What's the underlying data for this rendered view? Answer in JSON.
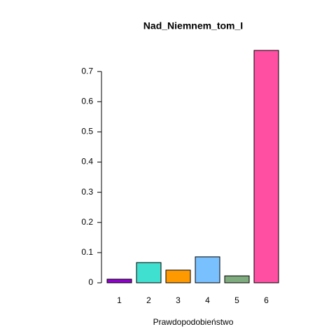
{
  "chart_data": {
    "type": "bar",
    "title": "Nad_Niemnem_tom_I",
    "x_label": "Prawdopodobieństwo",
    "categories": [
      "1",
      "2",
      "3",
      "4",
      "5",
      "6"
    ],
    "values": [
      0.012,
      0.067,
      0.042,
      0.086,
      0.023,
      0.77
    ],
    "colors": [
      "#9400d3",
      "#40e0d0",
      "#ff9900",
      "#79c0ff",
      "#7fac7f",
      "#ff4fa3"
    ],
    "ylim": [
      0,
      0.77
    ],
    "yticks": [
      0,
      0.1,
      0.2,
      0.3,
      0.4,
      0.5,
      0.6,
      0.7
    ]
  }
}
